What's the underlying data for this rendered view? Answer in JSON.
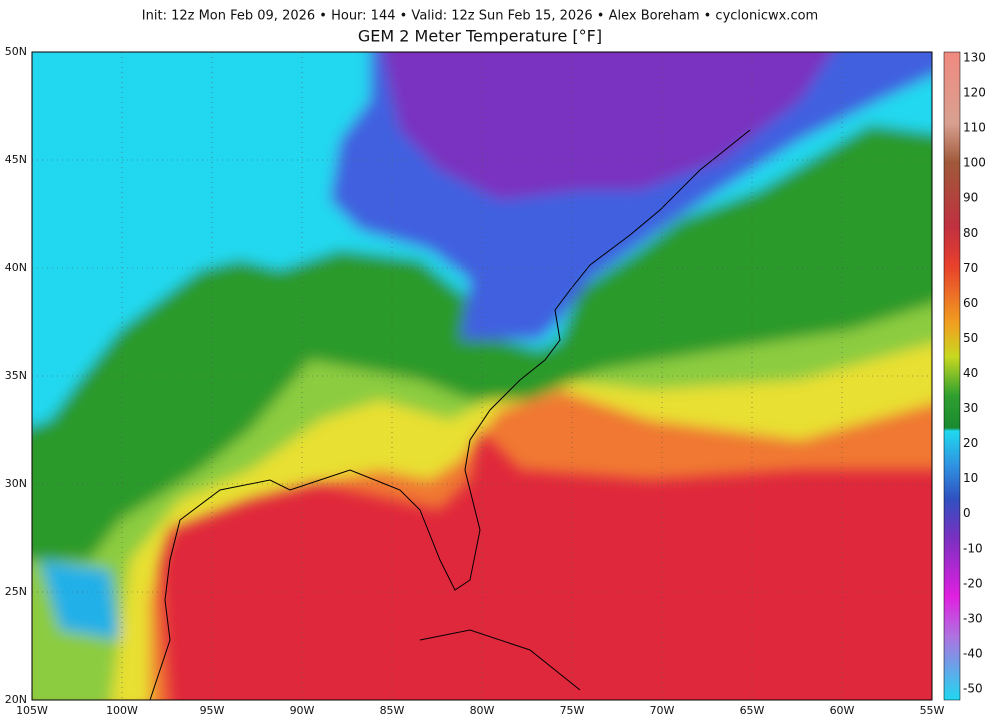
{
  "header": {
    "info": "Init: 12z Mon Feb 09, 2026  •  Hour: 144  •  Valid: 12z Sun Feb 15, 2026  •  Alex Boreham  •  cyclonicwx.com",
    "title": "GEM 2 Meter Temperature [°F]"
  },
  "axes": {
    "lon_labels": [
      "105W",
      "100W",
      "95W",
      "90W",
      "85W",
      "80W",
      "75W",
      "70W",
      "65W",
      "60W",
      "55W"
    ],
    "lat_labels": [
      "50N",
      "45N",
      "40N",
      "35N",
      "30N",
      "25N",
      "20N"
    ]
  },
  "colorbar": {
    "labels": [
      "130",
      "120",
      "110",
      "100",
      "90",
      "80",
      "70",
      "60",
      "50",
      "40",
      "30",
      "20",
      "10",
      "0",
      "-10",
      "-20",
      "-30",
      "-40",
      "-50"
    ]
  }
}
